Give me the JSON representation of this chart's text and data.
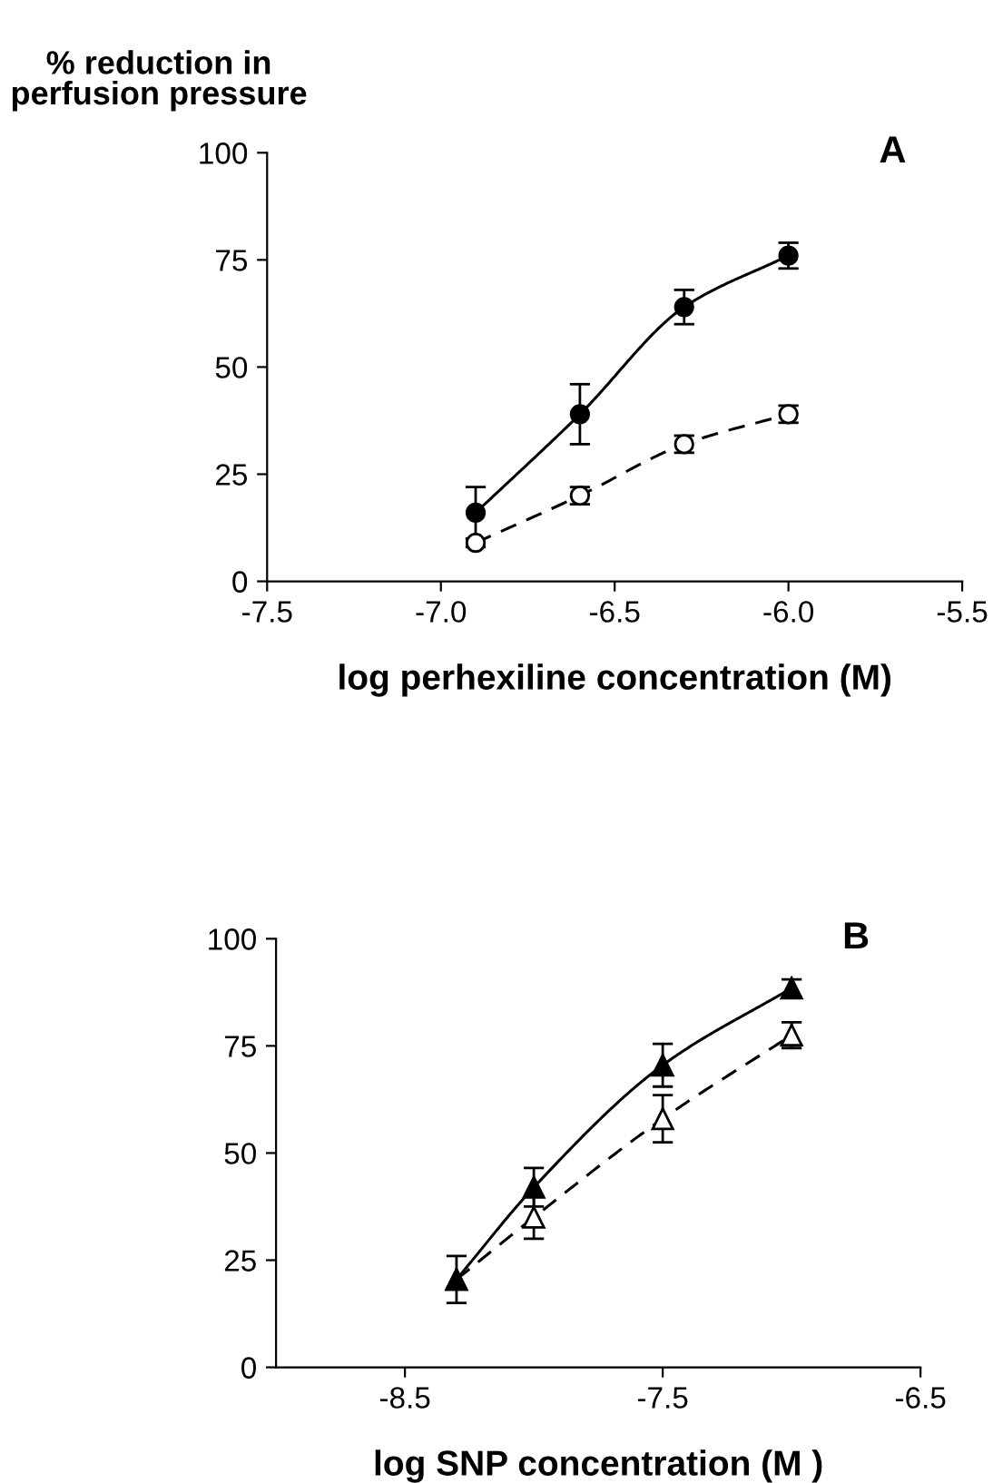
{
  "chart_data": [
    {
      "type": "line",
      "ylabel": "% reduction in\nperfusion pressure",
      "xlabel": "log perhexiline concentration (M)",
      "annotations": [
        "A"
      ],
      "xlim": [
        -7.5,
        -5.5
      ],
      "xticks": [
        -7.5,
        {
          "value": -7.0,
          "label": "-7.0"
        },
        -6.5,
        {
          "value": -6.0,
          "label": "-6.0"
        },
        -5.5
      ],
      "ylim": [
        0,
        100
      ],
      "yticks": [
        0,
        25,
        50,
        75,
        100
      ],
      "grid": false,
      "legend": false,
      "series": [
        {
          "color": "#000000",
          "marker": "circle",
          "line_style": "solid",
          "x": [
            -6.9,
            -6.6,
            -6.3,
            -6.0
          ],
          "values": [
            16,
            39,
            64,
            76
          ],
          "errors": [
            6,
            7,
            4,
            3
          ]
        },
        {
          "color": "#000000",
          "marker": "circle",
          "line_style": "dashed",
          "x": [
            -6.9,
            -6.6,
            -6.3,
            -6.0
          ],
          "values": [
            9,
            20,
            32,
            39
          ],
          "errors": [
            1,
            2,
            2,
            2
          ]
        }
      ]
    },
    {
      "type": "line",
      "xlabel": "log SNP concentration (M )",
      "annotations": [
        "B"
      ],
      "xlim": [
        -9.0,
        -6.5
      ],
      "xticks": [
        -8.5,
        -7.5,
        -6.5
      ],
      "ylim": [
        0,
        100
      ],
      "yticks": [
        0,
        25,
        50,
        75,
        100
      ],
      "grid": false,
      "legend": false,
      "series": [
        {
          "color": "#000000",
          "marker": "triangle",
          "line_style": "solid",
          "x": [
            -8.3,
            -8.0,
            -7.5,
            -7.0
          ],
          "values": [
            20.5,
            42,
            70.5,
            88.5
          ],
          "errors": [
            5.5,
            4.5,
            5,
            2
          ]
        },
        {
          "color": "#000000",
          "marker": "triangle",
          "line_style": "dashed",
          "x": [
            -8.3,
            -8.0,
            -7.5,
            -7.0
          ],
          "values": [
            20.5,
            35,
            58,
            77.5
          ],
          "errors": [
            null,
            5,
            5.5,
            3
          ]
        }
      ]
    }
  ]
}
